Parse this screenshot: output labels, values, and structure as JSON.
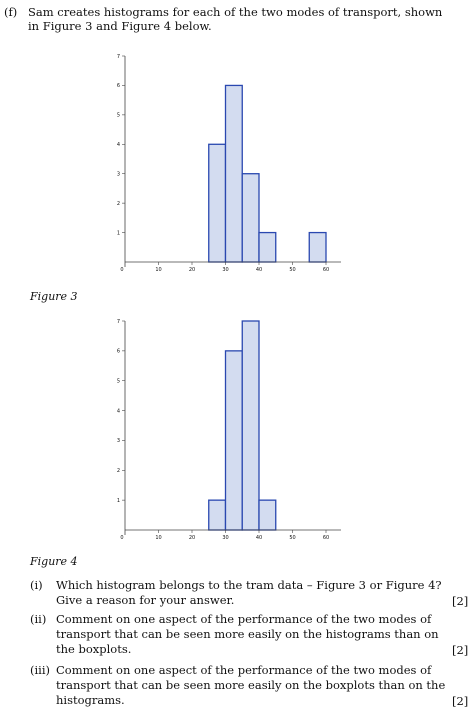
{
  "intro": {
    "label": "(f)",
    "line1": "Sam creates histograms for each of the two modes of transport, shown",
    "line2": "in Figure 3 and Figure 4 below."
  },
  "figures": [
    {
      "caption": "Figure 3"
    },
    {
      "caption": "Figure 4"
    }
  ],
  "chart_data": [
    {
      "type": "bar",
      "x_ticks": [
        "0",
        "10",
        "20",
        "30",
        "40",
        "50",
        "60"
      ],
      "y_ticks": [
        "1",
        "2",
        "3",
        "4",
        "5",
        "6",
        "7"
      ],
      "xlim": [
        0,
        65
      ],
      "ylim": [
        0,
        7
      ],
      "bin_width": 5,
      "bins": [
        {
          "start": 25,
          "value": 4
        },
        {
          "start": 30,
          "value": 6
        },
        {
          "start": 35,
          "value": 3
        },
        {
          "start": 40,
          "value": 1
        },
        {
          "start": 55,
          "value": 1
        }
      ]
    },
    {
      "type": "bar",
      "x_ticks": [
        "0",
        "10",
        "20",
        "30",
        "40",
        "50",
        "60"
      ],
      "y_ticks": [
        "1",
        "2",
        "3",
        "4",
        "5",
        "6",
        "7"
      ],
      "xlim": [
        0,
        65
      ],
      "ylim": [
        0,
        7
      ],
      "bin_width": 5,
      "bins": [
        {
          "start": 25,
          "value": 1
        },
        {
          "start": 30,
          "value": 6
        },
        {
          "start": 35,
          "value": 7
        },
        {
          "start": 40,
          "value": 1
        }
      ]
    }
  ],
  "questions": [
    {
      "label": "(i)",
      "lines": [
        "Which histogram belongs to the tram data – Figure 3 or Figure 4?",
        "Give a reason for your answer."
      ],
      "marks": "[2]"
    },
    {
      "label": "(ii)",
      "lines": [
        "Comment on one aspect of the performance of the two modes of",
        "transport that can be seen more easily on the histograms than on",
        "the boxplots."
      ],
      "marks": "[2]"
    },
    {
      "label": "(iii)",
      "lines": [
        "Comment on one aspect of the performance of the two modes of",
        "transport that can be seen more easily on the boxplots than on the",
        "histograms."
      ],
      "marks": "[2]"
    }
  ]
}
